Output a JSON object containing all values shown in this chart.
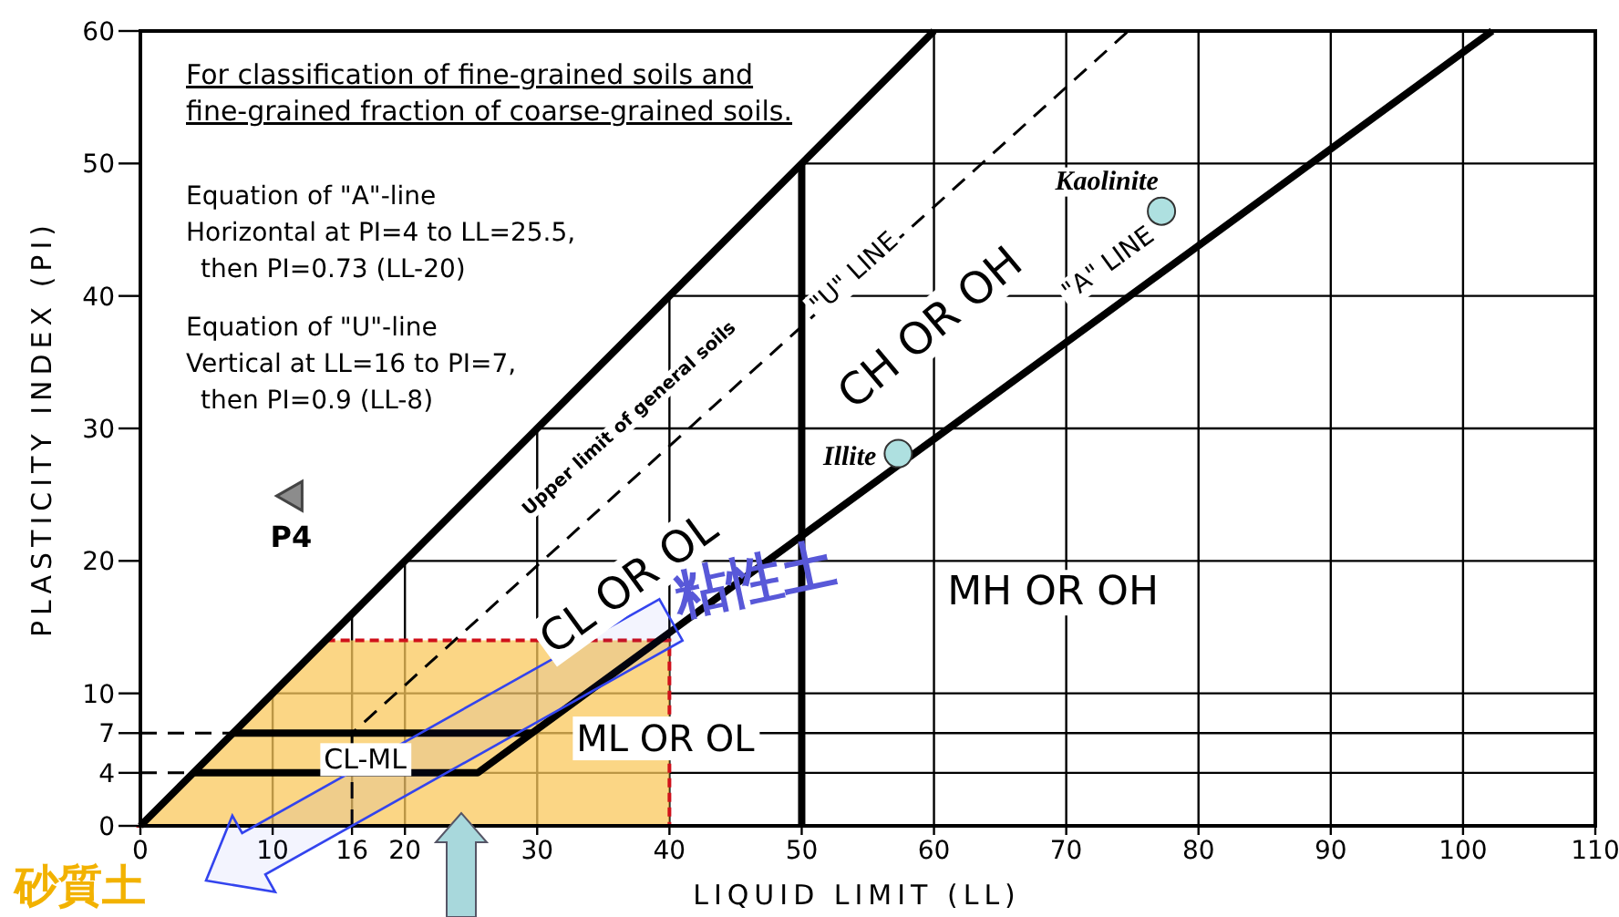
{
  "chart_data": {
    "type": "line",
    "xlabel": "LIQUID LIMIT (LL)",
    "ylabel": "PLASTICITY INDEX (PI)",
    "xlim": [
      0,
      110
    ],
    "ylim": [
      0,
      60
    ],
    "xticks": [
      0,
      10,
      16,
      20,
      30,
      40,
      50,
      60,
      70,
      80,
      90,
      100,
      110
    ],
    "yticks": [
      0,
      4,
      7,
      10,
      20,
      30,
      40,
      50,
      60
    ],
    "grid": true,
    "series": [
      {
        "type": "area",
        "color": "#f9c85c",
        "x": [
          0,
          14,
          40
        ],
        "values": [
          0,
          14,
          14
        ]
      },
      {
        "x": [
          0,
          60
        ],
        "values": [
          0,
          60
        ],
        "color": "#000000"
      },
      {
        "x": [
          50,
          50
        ],
        "values": [
          0,
          50
        ],
        "color": "#000000"
      },
      {
        "x": [
          4,
          25.5,
          102.2
        ],
        "values": [
          4,
          4,
          60
        ],
        "color": "#000000"
      },
      {
        "x": [
          7,
          29.6
        ],
        "values": [
          7,
          7
        ],
        "color": "#000000"
      },
      {
        "x": [
          16,
          16,
          74.7
        ],
        "values": [
          0,
          7,
          60
        ],
        "color": "#000000",
        "line_style": "dashed"
      },
      {
        "x": [
          0,
          7
        ],
        "values": [
          7,
          7
        ],
        "color": "#000000",
        "line_style": "dashed"
      },
      {
        "x": [
          0,
          4
        ],
        "values": [
          4,
          4
        ],
        "color": "#000000",
        "line_style": "dashed"
      },
      {
        "type": "scatter",
        "name": "Kaolinite",
        "x": [
          77.2
        ],
        "values": [
          46.4
        ],
        "color": "#aee0e0",
        "marker": "circle"
      },
      {
        "type": "scatter",
        "name": "Illite",
        "x": [
          57.3
        ],
        "values": [
          28.1
        ],
        "color": "#aee0e0",
        "marker": "circle"
      },
      {
        "type": "scatter",
        "name": "P4",
        "x": [
          11.4
        ],
        "values": [
          24.9
        ],
        "color": "#8c8c8c",
        "marker": "triangle"
      }
    ],
    "annotations": [
      "For classification of fine-grained soils and fine-grained fraction of coarse-grained soils.",
      "Equation of \"A\"-line",
      "Horizontal at PI=4 to LL=25.5,",
      "then PI=0.73 (LL-20)",
      "Equation of \"U\"-line",
      "Vertical at LL=16 to PI=7,",
      "then PI=0.9 (LL-8)",
      "CL OR OL",
      "CH OR OH",
      "MH OR OH",
      "ML OR OL",
      "CL-ML",
      "\"U\" LINE",
      "\"A\" LINE",
      "Upper limit of general soils",
      "粘性土",
      "砂質土"
    ]
  }
}
